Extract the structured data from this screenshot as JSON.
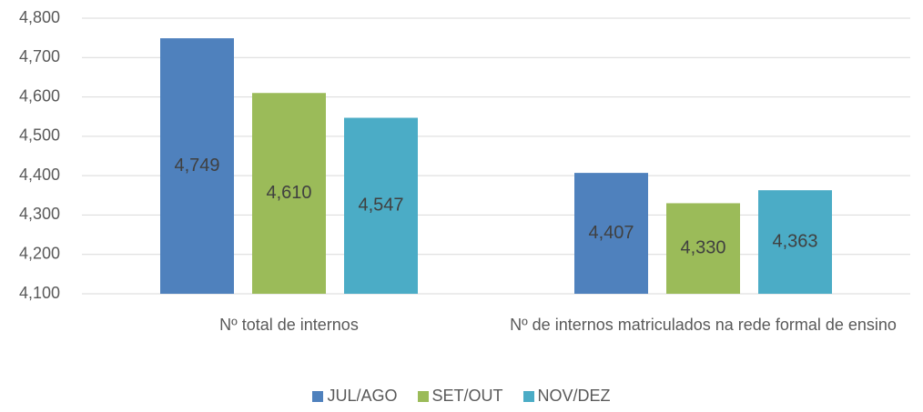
{
  "chart_data": {
    "type": "bar",
    "categories": [
      "Nº total de internos",
      "Nº de internos matriculados na rede formal de ensino"
    ],
    "series": [
      {
        "name": "JUL/AGO",
        "color": "#4f81bd",
        "values": [
          4749,
          4407
        ],
        "value_labels": [
          "4,749",
          "4,407"
        ]
      },
      {
        "name": "SET/OUT",
        "color": "#9bbb59",
        "values": [
          4610,
          4330
        ],
        "value_labels": [
          "4,610",
          "4,330"
        ]
      },
      {
        "name": "NOV/DEZ",
        "color": "#4bacc6",
        "values": [
          4547,
          4363
        ],
        "value_labels": [
          "4,547",
          "4,363"
        ]
      }
    ],
    "ylim": [
      4100,
      4800
    ],
    "yticks": [
      {
        "value": 4100,
        "label": "4,100"
      },
      {
        "value": 4200,
        "label": "4,200"
      },
      {
        "value": 4300,
        "label": "4,300"
      },
      {
        "value": 4400,
        "label": "4,400"
      },
      {
        "value": 4500,
        "label": "4,500"
      },
      {
        "value": 4600,
        "label": "4,600"
      },
      {
        "value": 4700,
        "label": "4,700"
      },
      {
        "value": 4800,
        "label": "4,800"
      }
    ],
    "grid": true,
    "legend": "bottom"
  }
}
